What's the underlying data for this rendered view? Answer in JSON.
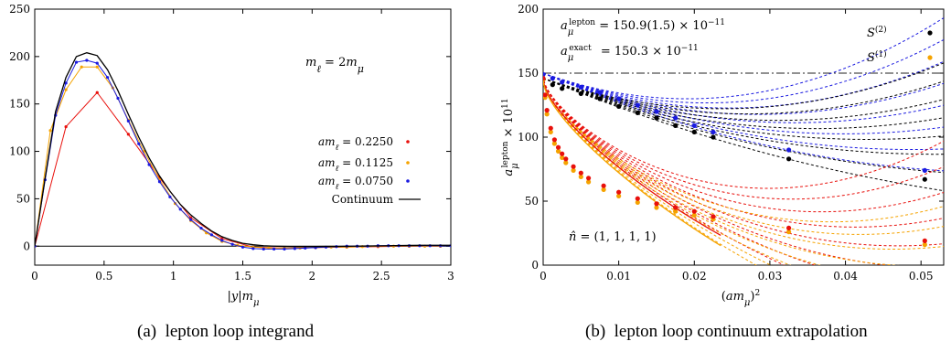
{
  "colors": {
    "red": "#e8100c",
    "orange": "#f5a300",
    "blue": "#1a1ae0",
    "black": "#000000",
    "dashdot": "#222222"
  },
  "captions": {
    "a_tag": "(a)",
    "a_text": "lepton loop integrand",
    "b_tag": "(b)",
    "b_text": "lepton loop continuum extrapolation"
  },
  "chart_data": [
    {
      "type": "line",
      "xlabel_parts": [
        "|y|m",
        "μ"
      ],
      "xlim": [
        0,
        3
      ],
      "ylim": [
        -20,
        250
      ],
      "xticks": [
        "0",
        "0.5",
        "1",
        "1.5",
        "2",
        "2.5",
        "3"
      ],
      "yticks": [
        "0",
        "50",
        "100",
        "150",
        "200",
        "250"
      ],
      "annotation": "m_ℓ = 2m_μ",
      "series": [
        {
          "name": "am_ℓ = 0.2250",
          "color_key": "red",
          "markers": true,
          "x": [
            0,
            0.225,
            0.45,
            0.675,
            0.9,
            1.125,
            1.35,
            1.575,
            1.8,
            2.025,
            2.25,
            2.475,
            2.7,
            2.925
          ],
          "y": [
            0,
            126,
            162,
            118,
            72,
            30,
            8,
            -1,
            -2,
            -1.5,
            -1,
            -0.5,
            0,
            0
          ]
        },
        {
          "name": "am_ℓ = 0.1125",
          "color_key": "orange",
          "markers": true,
          "x": [
            0,
            0.1125,
            0.225,
            0.3375,
            0.45,
            0.5625,
            0.675,
            0.7875,
            0.9,
            1.0125,
            1.125,
            1.2375,
            1.35,
            1.4625,
            1.575,
            1.6875,
            1.8,
            1.9125,
            2.025,
            2.1375,
            2.25,
            2.3625,
            2.475,
            2.5875,
            2.7,
            2.8125,
            2.925
          ],
          "y": [
            0,
            122,
            165,
            189,
            189,
            167,
            133,
            100,
            70,
            45,
            27,
            14,
            5,
            1,
            -1,
            -2,
            -2,
            -2,
            -1.5,
            -1,
            -1,
            -0.5,
            0,
            0,
            0,
            0,
            0
          ]
        },
        {
          "name": "am_ℓ = 0.0750",
          "color_key": "blue",
          "markers": true,
          "x": [
            0,
            0.075,
            0.15,
            0.225,
            0.3,
            0.375,
            0.45,
            0.525,
            0.6,
            0.675,
            0.75,
            0.825,
            0.9,
            0.975,
            1.05,
            1.125,
            1.2,
            1.275,
            1.35,
            1.425,
            1.5,
            1.575,
            1.65,
            1.725,
            1.8,
            1.875,
            1.95,
            2.025,
            2.1,
            2.175,
            2.25,
            2.325,
            2.4,
            2.475,
            2.55,
            2.625,
            2.7,
            2.775,
            2.85,
            2.925,
            3.0
          ],
          "y": [
            0,
            70,
            138,
            172,
            194,
            196,
            193,
            178,
            156,
            132,
            108,
            86,
            68,
            52,
            39,
            28,
            19,
            12,
            6,
            2,
            -1,
            -2.5,
            -3,
            -3,
            -3,
            -2.5,
            -2,
            -1.5,
            -1,
            -0.5,
            0,
            0,
            0,
            0.5,
            0.5,
            0.5,
            0.5,
            0.5,
            0.5,
            0.5,
            0.5
          ]
        },
        {
          "name": "Continuum",
          "color_key": "black",
          "markers": false,
          "x": [
            0,
            0.075,
            0.15,
            0.225,
            0.3,
            0.375,
            0.45,
            0.525,
            0.6,
            0.675,
            0.75,
            0.825,
            0.9,
            0.975,
            1.05,
            1.125,
            1.2,
            1.275,
            1.35,
            1.425,
            1.5,
            1.575,
            1.65,
            1.725,
            1.8,
            1.875,
            1.95,
            2.025,
            2.1,
            2.2,
            2.3,
            2.4,
            2.5,
            2.6,
            2.7,
            2.8,
            2.9,
            3.0
          ],
          "y": [
            0,
            72,
            142,
            178,
            200,
            204,
            201,
            186,
            164,
            139,
            115,
            93,
            74,
            58,
            44,
            33,
            24,
            16,
            10,
            6,
            3,
            1.5,
            0.5,
            0,
            -0.3,
            -0.5,
            -0.5,
            -0.4,
            -0.3,
            -0.2,
            0,
            0.2,
            0.4,
            0.6,
            0.8,
            1,
            1,
            1
          ]
        }
      ]
    },
    {
      "type": "line",
      "xlabel_parts": [
        "(am",
        "μ",
        ")",
        "2"
      ],
      "ylabel_parts": [
        "a",
        "μ",
        "lepton",
        " × 10",
        "11"
      ],
      "xlim": [
        0,
        0.053
      ],
      "ylim": [
        0,
        200
      ],
      "xticks": [
        "0",
        "0.01",
        "0.02",
        "0.03",
        "0.04",
        "0.05"
      ],
      "yticks": [
        "0",
        "50",
        "100",
        "150",
        "200"
      ],
      "reference_line": 150,
      "annotations": {
        "lepton_result": "a_μ^lepton = 150.9(1.5) × 10^−11",
        "exact": "a_μ^exact = 150.3 × 10^−11",
        "n_hat": "n̂ = (1, 1, 1, 1)"
      },
      "legend": [
        "S^(2)",
        "S^(1)"
      ],
      "series": [
        {
          "name": "S^(2)",
          "color_key": "black",
          "x": [
            0,
            0.00125,
            0.0025,
            0.005,
            0.0075,
            0.01,
            0.0125,
            0.015,
            0.0175,
            0.02,
            0.0225,
            0.0325,
            0.0505
          ],
          "y": [
            145,
            141,
            138,
            134,
            130,
            124,
            119,
            115,
            109,
            104,
            100,
            83,
            67
          ]
        },
        {
          "name": "S^(2) blue",
          "color_key": "blue",
          "x": [
            0,
            0.00125,
            0.0025,
            0.005,
            0.0075,
            0.01,
            0.0125,
            0.015,
            0.0175,
            0.02,
            0.0225,
            0.0325,
            0.0505
          ],
          "y": [
            149,
            146,
            143,
            139,
            135,
            130,
            125,
            120,
            115,
            109,
            104,
            90,
            74
          ]
        },
        {
          "name": "S^(1)",
          "color_key": "orange",
          "x": [
            0,
            0.00025,
            0.0005,
            0.001,
            0.0015,
            0.002,
            0.0025,
            0.003,
            0.004,
            0.005,
            0.006,
            0.008,
            0.01,
            0.0125,
            0.015,
            0.0175,
            0.02,
            0.0225,
            0.0325,
            0.0505
          ],
          "y": [
            145,
            131,
            118,
            104,
            95,
            89,
            84,
            80,
            74,
            69,
            65,
            59,
            54,
            49,
            45,
            42,
            39,
            36,
            26,
            16
          ]
        },
        {
          "name": "S^(1) red",
          "color_key": "red",
          "x": [
            0,
            0.00025,
            0.0005,
            0.001,
            0.0015,
            0.002,
            0.0025,
            0.003,
            0.004,
            0.005,
            0.006,
            0.008,
            0.01,
            0.0125,
            0.015,
            0.0175,
            0.02,
            0.0225,
            0.0325,
            0.0505
          ],
          "y": [
            146,
            133,
            121,
            107,
            98,
            92,
            87,
            83,
            77,
            72,
            68,
            62,
            57,
            52,
            48,
            45,
            42,
            38,
            29,
            19
          ]
        }
      ]
    }
  ]
}
